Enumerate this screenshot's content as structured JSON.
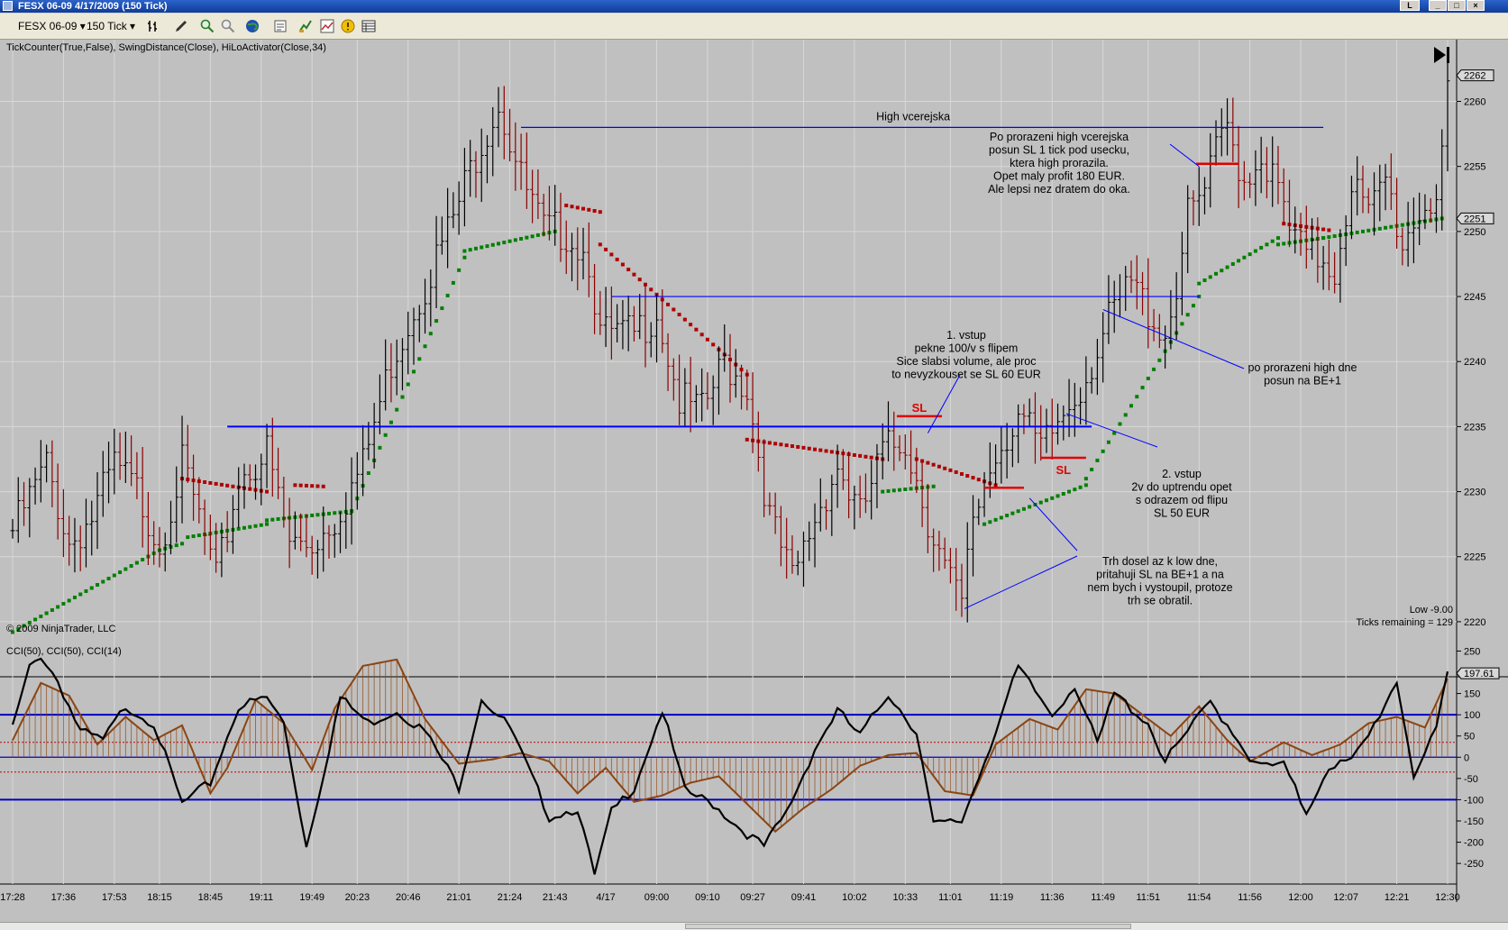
{
  "window": {
    "title": "FESX 06-09  4/17/2009 (150 Tick)",
    "controls": [
      "L",
      "_",
      "□",
      "×"
    ]
  },
  "toolbar": {
    "instrument": "FESX 06-09",
    "interval": "150 Tick"
  },
  "chart_data": [
    {
      "type": "ohlc",
      "title": "TickCounter(True,False), SwingDistance(Close), HiLoActivator(Close,34)",
      "copyright": "© 2009 NinjaTrader, LLC",
      "ylim": [
        2217.5,
        2263.5
      ],
      "yticks": [
        2220,
        2225,
        2230,
        2235,
        2240,
        2245,
        2250,
        2255,
        2260
      ],
      "last_price": 2262,
      "activator_price": 2251,
      "status": {
        "low": "Low -9.00",
        "ticks": "Ticks remaining = 129"
      },
      "x_time_labels": [
        "17:28",
        "17:36",
        "17:53",
        "18:15",
        "18:45",
        "19:11",
        "19:49",
        "20:23",
        "20:46",
        "21:01",
        "21:24",
        "21:43",
        "4/17",
        "09:00",
        "09:10",
        "09:27",
        "09:41",
        "10:02",
        "10:33",
        "11:01",
        "11:19",
        "11:36",
        "11:49",
        "11:51",
        "11:54",
        "11:56",
        "12:00",
        "12:07",
        "12:21",
        "12:30"
      ],
      "close_path": [
        [
          0,
          2227
        ],
        [
          6,
          2232
        ],
        [
          10,
          2226
        ],
        [
          14,
          2228
        ],
        [
          18,
          2232
        ],
        [
          22,
          2230
        ],
        [
          26,
          2226
        ],
        [
          30,
          2232
        ],
        [
          33,
          2228
        ],
        [
          36,
          2223
        ],
        [
          40,
          2231
        ],
        [
          45,
          2233
        ],
        [
          49,
          2226
        ],
        [
          53,
          2226
        ],
        [
          57,
          2228
        ],
        [
          62,
          2232
        ],
        [
          67,
          2240
        ],
        [
          73,
          2246
        ],
        [
          78,
          2251
        ],
        [
          82,
          2256
        ],
        [
          86,
          2260
        ],
        [
          90,
          2254
        ],
        [
          94,
          2250
        ],
        [
          98,
          2250
        ],
        [
          102,
          2248
        ],
        [
          104,
          2242
        ],
        [
          107,
          2242
        ],
        [
          110,
          2242
        ],
        [
          114,
          2244
        ],
        [
          118,
          2237
        ],
        [
          122,
          2236
        ],
        [
          126,
          2240
        ],
        [
          130,
          2238
        ],
        [
          134,
          2228
        ],
        [
          138,
          2223
        ],
        [
          142,
          2228
        ],
        [
          146,
          2232
        ],
        [
          150,
          2228
        ],
        [
          154,
          2233
        ],
        [
          158,
          2234
        ],
        [
          162,
          2228
        ],
        [
          165,
          2224
        ],
        [
          168,
          2221
        ],
        [
          170,
          2228
        ],
        [
          174,
          2233
        ],
        [
          178,
          2236
        ],
        [
          182,
          2233
        ],
        [
          186,
          2236
        ],
        [
          190,
          2239
        ],
        [
          194,
          2243
        ],
        [
          198,
          2246
        ],
        [
          201,
          2244
        ],
        [
          204,
          2242
        ],
        [
          206,
          2246
        ],
        [
          208,
          2251
        ],
        [
          211,
          2253
        ],
        [
          213,
          2256
        ],
        [
          215,
          2258
        ],
        [
          218,
          2254
        ],
        [
          221,
          2256
        ],
        [
          224,
          2253
        ],
        [
          226,
          2250
        ],
        [
          229,
          2248
        ],
        [
          232,
          2248
        ],
        [
          234,
          2247
        ],
        [
          237,
          2254
        ],
        [
          240,
          2251
        ],
        [
          243,
          2254
        ],
        [
          246,
          2249
        ],
        [
          248,
          2251
        ],
        [
          250,
          2252
        ],
        [
          252,
          2253
        ],
        [
          254,
          2260
        ]
      ],
      "bar_count": 255,
      "hilo_activator": {
        "green_segments": [
          [
            0,
            26,
            2219.2,
            2225.5
          ],
          [
            26,
            30,
            2225.5,
            2226.0
          ],
          [
            31,
            45,
            2226.5,
            2227.5
          ],
          [
            45,
            60,
            2227.8,
            2228.5
          ],
          [
            60,
            80,
            2228.5,
            2248.0
          ],
          [
            80,
            96,
            2248.5,
            2250.0
          ],
          [
            154,
            163,
            2230.0,
            2230.4
          ],
          [
            172,
            190,
            2227.5,
            2230.5
          ],
          [
            190,
            210,
            2231,
            2245
          ],
          [
            210,
            224,
            2246,
            2249.5
          ],
          [
            224,
            232,
            2249,
            2249.5
          ],
          [
            232,
            253,
            2249.5,
            2251
          ]
        ],
        "red_segments": [
          [
            30,
            45,
            2231.0,
            2230.0
          ],
          [
            50,
            55,
            2230.5,
            2230.4
          ],
          [
            98,
            104,
            2252.0,
            2251.5
          ],
          [
            104,
            130,
            2249.0,
            2239.0
          ],
          [
            130,
            154,
            2234.0,
            2232.5
          ],
          [
            160,
            174,
            2232.5,
            2230.5
          ],
          [
            225,
            233,
            2250.6,
            2250.1
          ]
        ]
      },
      "lines": [
        {
          "label": "",
          "y": 2235,
          "x_from": 38,
          "x_to": 191,
          "color": "#0000ff"
        },
        {
          "label": "",
          "y": 2245,
          "x_from": 106,
          "x_to": 210,
          "color": "#0000ff"
        },
        {
          "label": "High vcerejska",
          "y": 2258,
          "x_from": 90,
          "x_to": 232,
          "color": "#0000ff"
        }
      ],
      "sl_markers": [
        {
          "label": "SL",
          "y": 2235.8,
          "x_from": 156.5,
          "x_to": 164.5
        },
        {
          "label": "SL",
          "y": 2232.6,
          "x_from": 182,
          "x_to": 190
        },
        {
          "label": "",
          "y": 2230.3,
          "x_from": 172,
          "x_to": 179
        },
        {
          "label": "",
          "y": 2255.2,
          "x_from": 209.5,
          "x_to": 217
        }
      ],
      "annotations": [
        {
          "lines": [
            "1. vstup",
            "pekne 100/v s flipem",
            "Sice slabsi volume, ale proc",
            "to nevyzkouset se SL 60 EUR"
          ],
          "arrow_to": [
            162,
            2234.5
          ]
        },
        {
          "lines": [
            "Po prorazeni high vcerejska",
            "posun SL 1 tick pod usecku,",
            "ktera high prorazila.",
            "Opet maly profit 180 EUR.",
            "Ale lepsi nez dratem do oka."
          ],
          "arrow_to": [
            210,
            2255
          ]
        },
        {
          "lines": [
            "po prorazeni high dne",
            "posun na BE+1"
          ],
          "arrow_to": [
            193,
            2244
          ]
        },
        {
          "lines": [
            "2. vstup",
            "2v do uptrendu opet",
            "s odrazem od flipu",
            "SL 50 EUR"
          ],
          "arrow_to": [
            186.5,
            2236
          ]
        },
        {
          "lines": [
            "Trh dosel az k low dne,",
            "pritahuji SL na BE+1 a na",
            "nem bych i vystoupil, protoze",
            "trh se obratil."
          ],
          "arrows_to": [
            [
              180,
              2229.5
            ],
            [
              168.5,
              2221
            ]
          ]
        }
      ]
    },
    {
      "type": "line",
      "title": "CCI(50), CCI(50), CCI(14)",
      "ylim": [
        -290,
        270
      ],
      "yticks": [
        250,
        200,
        150,
        100,
        50,
        0,
        -50,
        -100,
        -150,
        -200,
        -250
      ],
      "reference_lines": [
        100,
        -100
      ],
      "dotted_lines": [
        35,
        -35
      ],
      "last_value": "197.61",
      "series": [
        {
          "name": "",
          "color": "#8b4513",
          "style": "line+histogram",
          "points": [
            [
              0,
              40
            ],
            [
              5,
              175
            ],
            [
              10,
              145
            ],
            [
              15,
              30
            ],
            [
              20,
              95
            ],
            [
              25,
              40
            ],
            [
              30,
              75
            ],
            [
              35,
              -85
            ],
            [
              38,
              -25
            ],
            [
              43,
              135
            ],
            [
              48,
              80
            ],
            [
              53,
              -30
            ],
            [
              57,
              115
            ],
            [
              62,
              215
            ],
            [
              68,
              230
            ],
            [
              73,
              90
            ],
            [
              79,
              -15
            ],
            [
              85,
              -5
            ],
            [
              90,
              10
            ],
            [
              95,
              -10
            ],
            [
              100,
              -85
            ],
            [
              105,
              -25
            ],
            [
              110,
              -105
            ],
            [
              115,
              -90
            ],
            [
              120,
              -60
            ],
            [
              125,
              -45
            ],
            [
              130,
              -110
            ],
            [
              135,
              -175
            ],
            [
              140,
              -120
            ],
            [
              145,
              -75
            ],
            [
              150,
              -20
            ],
            [
              155,
              5
            ],
            [
              160,
              10
            ],
            [
              165,
              -80
            ],
            [
              170,
              -90
            ],
            [
              174,
              30
            ],
            [
              180,
              90
            ],
            [
              185,
              65
            ],
            [
              190,
              160
            ],
            [
              195,
              150
            ],
            [
              200,
              100
            ],
            [
              205,
              50
            ],
            [
              210,
              120
            ],
            [
              215,
              40
            ],
            [
              219,
              -10
            ],
            [
              225,
              35
            ],
            [
              230,
              5
            ],
            [
              235,
              30
            ],
            [
              240,
              80
            ],
            [
              245,
              95
            ],
            [
              250,
              70
            ],
            [
              254,
              185
            ]
          ]
        },
        {
          "name": "",
          "color": "#000000",
          "style": "line",
          "points": [
            [
              0,
              70
            ],
            [
              3,
              210
            ],
            [
              5,
              240
            ],
            [
              8,
              180
            ],
            [
              12,
              60
            ],
            [
              16,
              40
            ],
            [
              20,
              120
            ],
            [
              25,
              80
            ],
            [
              30,
              -110
            ],
            [
              35,
              -60
            ],
            [
              40,
              120
            ],
            [
              45,
              140
            ],
            [
              48,
              80
            ],
            [
              52,
              -210
            ],
            [
              55,
              -40
            ],
            [
              58,
              140
            ],
            [
              63,
              80
            ],
            [
              68,
              110
            ],
            [
              73,
              60
            ],
            [
              79,
              -70
            ],
            [
              83,
              140
            ],
            [
              88,
              70
            ],
            [
              95,
              -140
            ],
            [
              100,
              -120
            ],
            [
              103,
              -280
            ],
            [
              106,
              -130
            ],
            [
              110,
              -70
            ],
            [
              115,
              110
            ],
            [
              119,
              -80
            ],
            [
              124,
              -110
            ],
            [
              129,
              -170
            ],
            [
              133,
              -210
            ],
            [
              137,
              -130
            ],
            [
              142,
              20
            ],
            [
              146,
              110
            ],
            [
              150,
              50
            ],
            [
              155,
              150
            ],
            [
              160,
              60
            ],
            [
              163,
              -160
            ],
            [
              168,
              -150
            ],
            [
              172,
              -10
            ],
            [
              178,
              210
            ],
            [
              184,
              100
            ],
            [
              188,
              170
            ],
            [
              192,
              30
            ],
            [
              195,
              150
            ],
            [
              201,
              80
            ],
            [
              204,
              -10
            ],
            [
              208,
              60
            ],
            [
              212,
              130
            ],
            [
              216,
              60
            ],
            [
              220,
              -20
            ],
            [
              225,
              -20
            ],
            [
              229,
              -130
            ],
            [
              233,
              -20
            ],
            [
              237,
              -10
            ],
            [
              240,
              50
            ],
            [
              245,
              180
            ],
            [
              248,
              -40
            ],
            [
              252,
              60
            ],
            [
              254,
              197.61
            ]
          ]
        }
      ]
    }
  ]
}
